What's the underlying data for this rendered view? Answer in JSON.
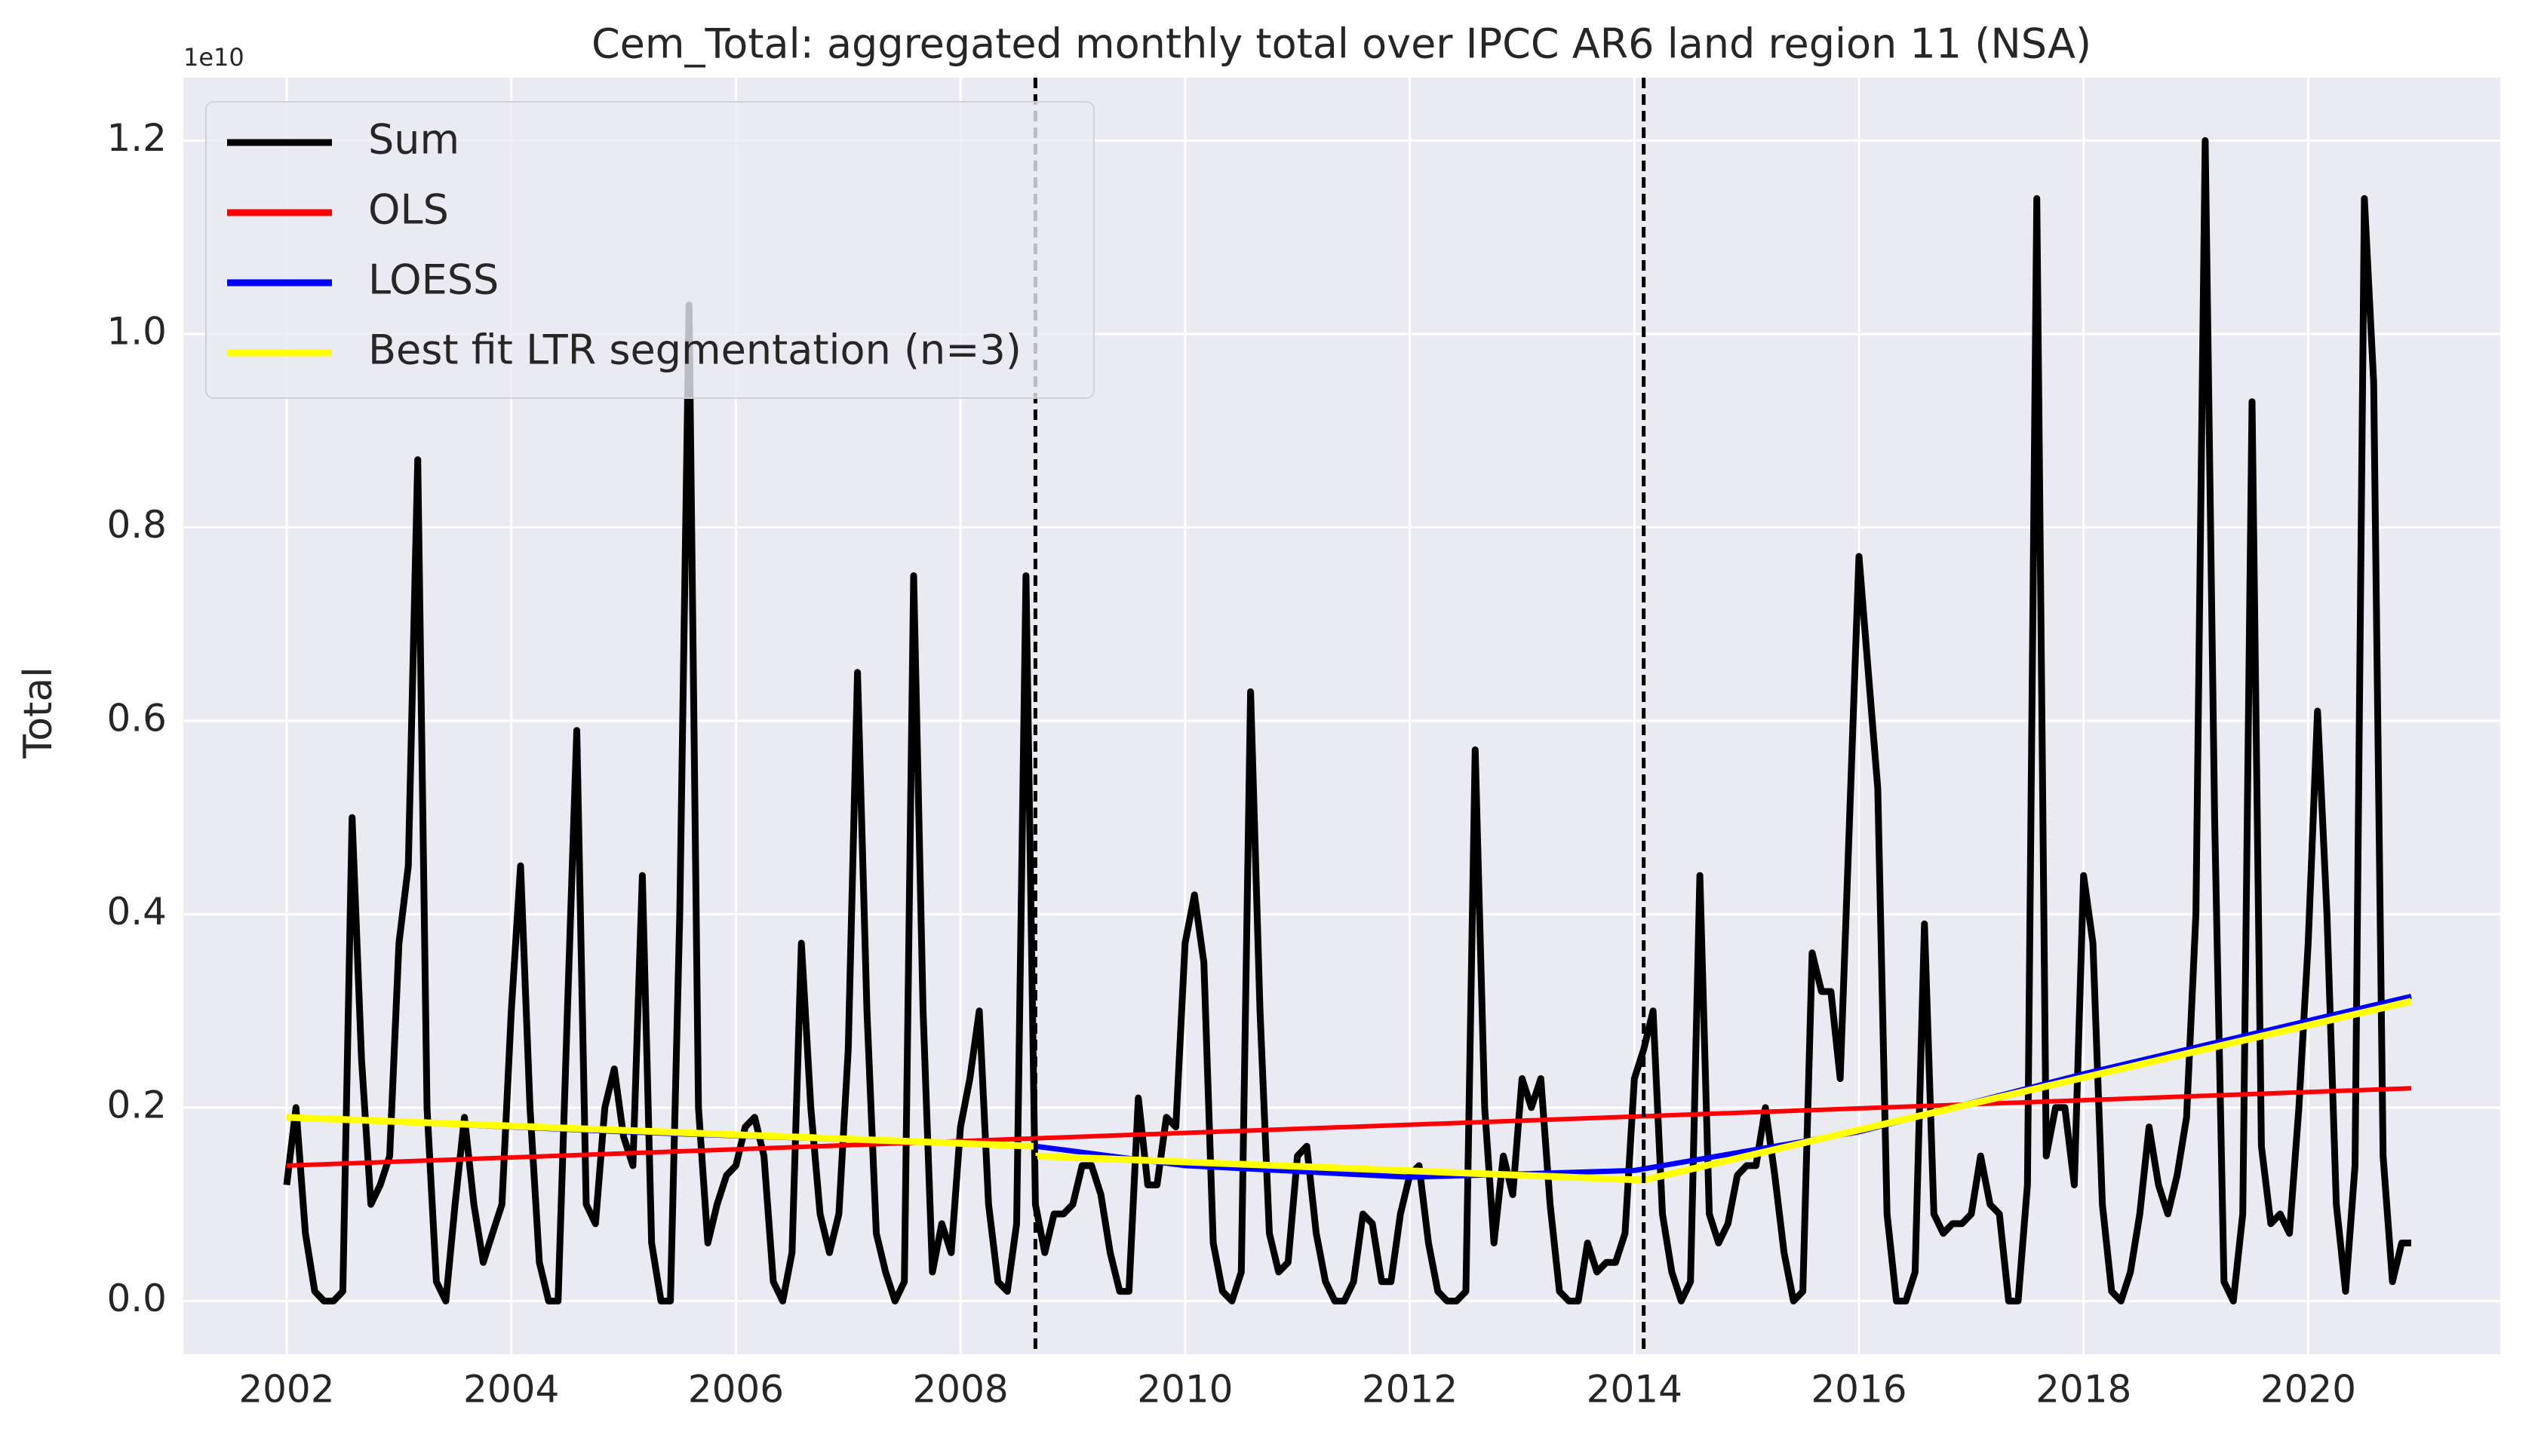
{
  "chart_data": {
    "type": "line",
    "title": "Cem_Total: aggregated monthly total over IPCC AR6 land region 11 (NSA)",
    "ylabel": "Total",
    "y_offset_label": "1e10",
    "xlim": [
      2001.08,
      2021.71
    ],
    "xticks": [
      2002,
      2004,
      2006,
      2008,
      2010,
      2012,
      2014,
      2016,
      2018,
      2020
    ],
    "ylim": [
      -0.055,
      1.265
    ],
    "yticks": [
      {
        "value": 0,
        "label": "0.0"
      },
      0.2,
      0.4,
      0.6,
      0.8,
      {
        "value": 1,
        "label": "1.0"
      },
      1.2
    ],
    "grid": true,
    "legend": "upper left",
    "vlines": [
      2008.667,
      2014.083
    ],
    "series": [
      {
        "name": "Sum",
        "color": "#000000",
        "x": [
          2002,
          2002.083,
          2002.167,
          2002.25,
          2002.333,
          2002.417,
          2002.5,
          2002.583,
          2002.667,
          2002.75,
          2002.833,
          2002.917,
          2003,
          2003.083,
          2003.167,
          2003.25,
          2003.333,
          2003.417,
          2003.5,
          2003.583,
          2003.667,
          2003.75,
          2003.833,
          2003.917,
          2004,
          2004.083,
          2004.167,
          2004.25,
          2004.333,
          2004.417,
          2004.5,
          2004.583,
          2004.667,
          2004.75,
          2004.833,
          2004.917,
          2005,
          2005.083,
          2005.167,
          2005.25,
          2005.333,
          2005.417,
          2005.5,
          2005.583,
          2005.667,
          2005.75,
          2005.833,
          2005.917,
          2006,
          2006.083,
          2006.167,
          2006.25,
          2006.333,
          2006.417,
          2006.5,
          2006.583,
          2006.667,
          2006.75,
          2006.833,
          2006.917,
          2007,
          2007.083,
          2007.167,
          2007.25,
          2007.333,
          2007.417,
          2007.5,
          2007.583,
          2007.667,
          2007.75,
          2007.833,
          2007.917,
          2008,
          2008.083,
          2008.167,
          2008.25,
          2008.333,
          2008.417,
          2008.5,
          2008.583,
          2008.667,
          2008.75,
          2008.833,
          2008.917,
          2009,
          2009.083,
          2009.167,
          2009.25,
          2009.333,
          2009.417,
          2009.5,
          2009.583,
          2009.667,
          2009.75,
          2009.833,
          2009.917,
          2010,
          2010.083,
          2010.167,
          2010.25,
          2010.333,
          2010.417,
          2010.5,
          2010.583,
          2010.667,
          2010.75,
          2010.833,
          2010.917,
          2011,
          2011.083,
          2011.167,
          2011.25,
          2011.333,
          2011.417,
          2011.5,
          2011.583,
          2011.667,
          2011.75,
          2011.833,
          2011.917,
          2012,
          2012.083,
          2012.167,
          2012.25,
          2012.333,
          2012.417,
          2012.5,
          2012.583,
          2012.667,
          2012.75,
          2012.833,
          2012.917,
          2013,
          2013.083,
          2013.167,
          2013.25,
          2013.333,
          2013.417,
          2013.5,
          2013.583,
          2013.667,
          2013.75,
          2013.833,
          2013.917,
          2014,
          2014.083,
          2014.167,
          2014.25,
          2014.333,
          2014.417,
          2014.5,
          2014.583,
          2014.667,
          2014.75,
          2014.833,
          2014.917,
          2015,
          2015.083,
          2015.167,
          2015.25,
          2015.333,
          2015.417,
          2015.5,
          2015.583,
          2015.667,
          2015.75,
          2015.833,
          2015.917,
          2016,
          2016.083,
          2016.167,
          2016.25,
          2016.333,
          2016.417,
          2016.5,
          2016.583,
          2016.667,
          2016.75,
          2016.833,
          2016.917,
          2017,
          2017.083,
          2017.167,
          2017.25,
          2017.333,
          2017.417,
          2017.5,
          2017.583,
          2017.667,
          2017.75,
          2017.833,
          2017.917,
          2018,
          2018.083,
          2018.167,
          2018.25,
          2018.333,
          2018.417,
          2018.5,
          2018.583,
          2018.667,
          2018.75,
          2018.833,
          2018.917,
          2019,
          2019.083,
          2019.167,
          2019.25,
          2019.333,
          2019.417,
          2019.5,
          2019.583,
          2019.667,
          2019.75,
          2019.833,
          2019.917,
          2020,
          2020.083,
          2020.167,
          2020.25,
          2020.333,
          2020.417,
          2020.5,
          2020.583,
          2020.667,
          2020.75,
          2020.833,
          2020.917
        ],
        "values": [
          0.12,
          0.2,
          0.07,
          0.01,
          0.0,
          0.0,
          0.01,
          0.5,
          0.25,
          0.1,
          0.12,
          0.15,
          0.37,
          0.45,
          0.87,
          0.2,
          0.02,
          0.0,
          0.1,
          0.19,
          0.1,
          0.04,
          0.07,
          0.1,
          0.3,
          0.45,
          0.2,
          0.04,
          0.0,
          0.0,
          0.3,
          0.59,
          0.1,
          0.08,
          0.2,
          0.24,
          0.17,
          0.14,
          0.44,
          0.06,
          0.0,
          0.0,
          0.4,
          1.03,
          0.2,
          0.06,
          0.1,
          0.13,
          0.14,
          0.18,
          0.19,
          0.15,
          0.02,
          0.0,
          0.05,
          0.37,
          0.2,
          0.09,
          0.05,
          0.09,
          0.26,
          0.65,
          0.3,
          0.07,
          0.03,
          0.0,
          0.02,
          0.75,
          0.3,
          0.03,
          0.08,
          0.05,
          0.18,
          0.23,
          0.3,
          0.1,
          0.02,
          0.01,
          0.08,
          0.75,
          0.1,
          0.05,
          0.09,
          0.09,
          0.1,
          0.14,
          0.14,
          0.11,
          0.05,
          0.01,
          0.01,
          0.21,
          0.12,
          0.12,
          0.19,
          0.18,
          0.37,
          0.42,
          0.35,
          0.06,
          0.01,
          0.0,
          0.03,
          0.63,
          0.3,
          0.07,
          0.03,
          0.04,
          0.15,
          0.16,
          0.07,
          0.02,
          0.0,
          0.0,
          0.02,
          0.09,
          0.08,
          0.02,
          0.02,
          0.09,
          0.13,
          0.14,
          0.06,
          0.01,
          0.0,
          0.0,
          0.01,
          0.57,
          0.2,
          0.06,
          0.15,
          0.11,
          0.23,
          0.2,
          0.23,
          0.1,
          0.01,
          0.0,
          0.0,
          0.06,
          0.03,
          0.04,
          0.04,
          0.07,
          0.23,
          0.26,
          0.3,
          0.09,
          0.03,
          0.0,
          0.02,
          0.44,
          0.09,
          0.06,
          0.08,
          0.13,
          0.14,
          0.14,
          0.2,
          0.13,
          0.05,
          0.0,
          0.01,
          0.36,
          0.32,
          0.32,
          0.23,
          0.5,
          0.77,
          0.65,
          0.53,
          0.09,
          0.0,
          0.0,
          0.03,
          0.39,
          0.09,
          0.07,
          0.08,
          0.08,
          0.09,
          0.15,
          0.1,
          0.09,
          0.0,
          0.0,
          0.12,
          1.14,
          0.15,
          0.2,
          0.2,
          0.12,
          0.44,
          0.37,
          0.1,
          0.01,
          0.0,
          0.03,
          0.09,
          0.18,
          0.12,
          0.09,
          0.13,
          0.19,
          0.4,
          1.2,
          0.5,
          0.02,
          0.0,
          0.09,
          0.93,
          0.16,
          0.08,
          0.09,
          0.07,
          0.2,
          0.37,
          0.61,
          0.4,
          0.1,
          0.01,
          0.14,
          1.14,
          0.95,
          0.15,
          0.02,
          0.06,
          0.06
        ]
      },
      {
        "name": "OLS",
        "color": "#ff0000",
        "x": [
          2002,
          2020.917
        ],
        "values": [
          0.14,
          0.22
        ]
      },
      {
        "name": "LOESS",
        "color": "#0000ff",
        "x": [
          2002,
          2005,
          2008.667,
          2010,
          2012,
          2014,
          2016,
          2018,
          2020.917
        ],
        "values": [
          0.19,
          0.175,
          0.16,
          0.14,
          0.128,
          0.135,
          0.175,
          0.235,
          0.315
        ]
      },
      {
        "name": "Best fit LTR segmentation (n=3)",
        "color": "#ffff00",
        "x": [
          2002,
          2008.667,
          null,
          2008.667,
          2014.083,
          2020.917
        ],
        "values": [
          0.19,
          0.16,
          null,
          0.15,
          0.125,
          0.31
        ]
      }
    ]
  }
}
